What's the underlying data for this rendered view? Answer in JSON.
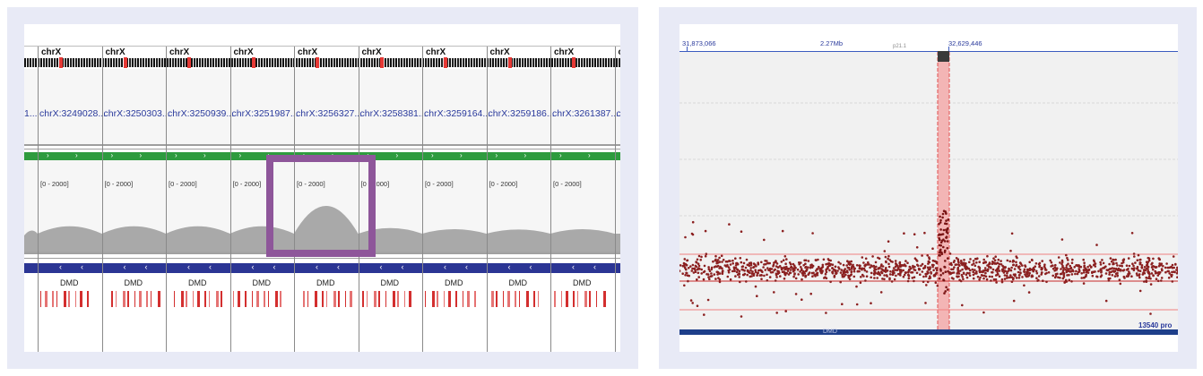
{
  "left_panel": {
    "chromosome": "chrX",
    "last_column_partial_label": "c",
    "first_locus_partial": "1...",
    "loci": [
      "chrX:3249028...",
      "chrX:3250303...",
      "chrX:3250939...",
      "chrX:3251987...",
      "chrX:3256327...",
      "chrX:3258381...",
      "chrX:3259164...",
      "chrX:3259186...",
      "chrX:3261387..."
    ],
    "last_locus_partial": "c",
    "data_range": "[0 - 2000]",
    "gene_label": "DMD",
    "coverage_levels": [
      0.33,
      0.33,
      0.33,
      0.33,
      0.9,
      0.28,
      0.25,
      0.24,
      0.25
    ],
    "highlight_color": "#8e569a"
  },
  "right_panel": {
    "ruler_left": "31,873,066",
    "ruler_mid": "2.27Mb",
    "ruler_right": "32,629,446",
    "cytoband": "p21.1",
    "gene_label": "DMD",
    "count_label": "13540 pro",
    "highlight_color": "#f3b5b5",
    "point_color": "#8b2020"
  }
}
